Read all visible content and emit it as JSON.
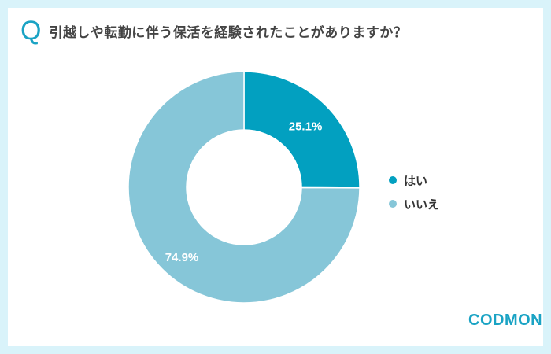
{
  "header": {
    "q_mark": "Q",
    "title": "引越しや転勤に伴う保活を経験されたことがありますか？"
  },
  "colors": {
    "border": "#d9f3fa",
    "yes": "#02a0c0",
    "no": "#86c6d8",
    "accent": "#1aa3c4"
  },
  "legend": {
    "items": [
      {
        "label": "はい",
        "color": "#02a0c0"
      },
      {
        "label": "いいえ",
        "color": "#86c6d8"
      }
    ]
  },
  "logo": {
    "text": "CODMON"
  },
  "chart_data": {
    "type": "pie",
    "subtype": "donut",
    "title": "引越しや転勤に伴う保活を経験されたことがありますか？",
    "categories": [
      "はい",
      "いいえ"
    ],
    "values": [
      25.1,
      74.9
    ],
    "labels": [
      "25.1%",
      "74.9%"
    ],
    "colors": [
      "#02a0c0",
      "#86c6d8"
    ],
    "legend_position": "right"
  }
}
